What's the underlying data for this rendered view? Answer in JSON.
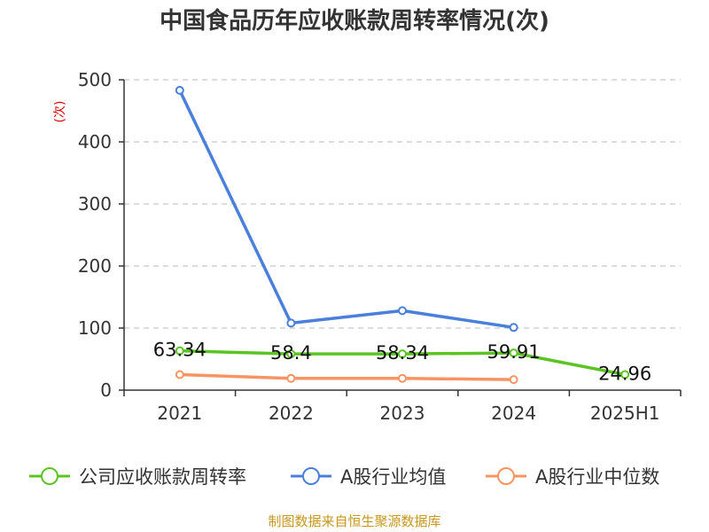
{
  "chart_data": {
    "type": "line",
    "title": "中国食品历年应收账款周转率情况(次)",
    "ylabel": "(次)",
    "ylim": [
      0,
      500
    ],
    "yticks": [
      0,
      100,
      200,
      300,
      400,
      500
    ],
    "categories": [
      "2021",
      "2022",
      "2023",
      "2024",
      "2025H1"
    ],
    "grid": true,
    "legend_position": "bottom",
    "series": [
      {
        "name": "公司应收账款周转率",
        "color": "#5bc424",
        "values": [
          63.34,
          58.4,
          58.34,
          59.91,
          24.96
        ],
        "labels": [
          "63.34",
          "58.4",
          "58.34",
          "59.91",
          "24.96"
        ]
      },
      {
        "name": "A股行业均值",
        "color": "#4a7fdb",
        "values": [
          483,
          108,
          128,
          101,
          null
        ]
      },
      {
        "name": "A股行业中位数",
        "color": "#f79462",
        "values": [
          25,
          19,
          19,
          17,
          null
        ]
      }
    ]
  },
  "source_text": "制图数据来自恒生聚源数据库"
}
